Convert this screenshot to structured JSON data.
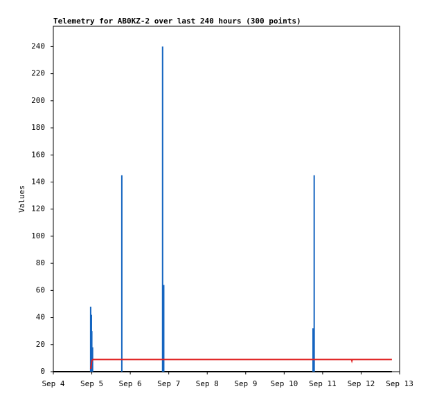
{
  "chart_data": {
    "type": "line",
    "title": "Telemetry for AB0KZ-2 over last 240 hours (300 points)",
    "y_label": "Values",
    "xlim": [
      4,
      13
    ],
    "xticks": [
      {
        "value": 4,
        "label": "Sep 4"
      },
      {
        "value": 5,
        "label": "Sep 5"
      },
      {
        "value": 6,
        "label": "Sep 6"
      },
      {
        "value": 7,
        "label": "Sep 7"
      },
      {
        "value": 8,
        "label": "Sep 8"
      },
      {
        "value": 9,
        "label": "Sep 9"
      },
      {
        "value": 10,
        "label": "Sep 10"
      },
      {
        "value": 11,
        "label": "Sep 11"
      },
      {
        "value": 12,
        "label": "Sep 12"
      },
      {
        "value": 13,
        "label": "Sep 13"
      }
    ],
    "ylim": [
      0,
      255
    ],
    "yticks": [
      0,
      20,
      40,
      60,
      80,
      100,
      120,
      140,
      160,
      180,
      200,
      220,
      240
    ],
    "series": [
      {
        "color": "#000000",
        "style": "line",
        "x": [
          4,
          12.8
        ],
        "values": [
          0,
          0
        ]
      },
      {
        "color": "#1565c0",
        "style": "impulse",
        "x": [
          4.97,
          4.99,
          5.0,
          5.02,
          5.78,
          6.84,
          6.87,
          10.75,
          10.78
        ],
        "values": [
          48,
          42,
          30,
          18,
          145,
          240,
          64,
          32,
          145
        ]
      },
      {
        "color": "#e02020",
        "style": "line",
        "x": [
          4.97,
          5.0,
          5.03,
          11.75,
          11.76,
          11.77,
          12.8
        ],
        "values": [
          2,
          8,
          9,
          9,
          8,
          9,
          9
        ]
      }
    ]
  }
}
